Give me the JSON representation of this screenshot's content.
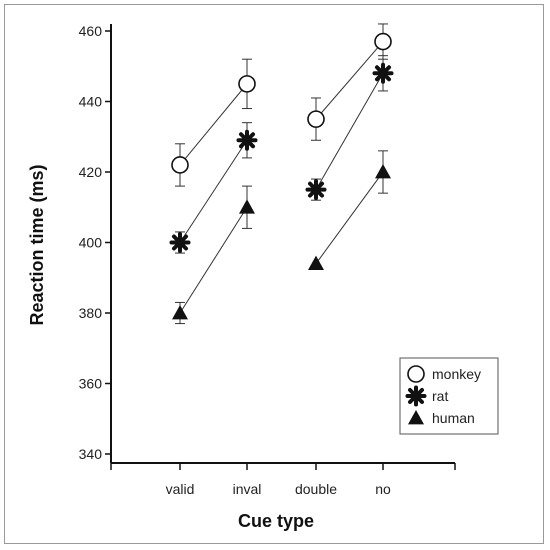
{
  "chart_data": {
    "type": "scatter",
    "xlabel": "Cue type",
    "ylabel": "Reaction time (ms)",
    "categories": [
      "valid",
      "inval",
      "double",
      "no"
    ],
    "ylim": [
      340,
      460
    ],
    "yticks": [
      340,
      360,
      380,
      400,
      420,
      440,
      460
    ],
    "grid": false,
    "legend_position": "bottom-right",
    "connected_pairs": [
      [
        0,
        1
      ],
      [
        2,
        3
      ]
    ],
    "series": [
      {
        "name": "monkey",
        "marker": "open-circle",
        "values": [
          422,
          445,
          435,
          457
        ],
        "error": [
          6,
          7,
          6,
          5
        ]
      },
      {
        "name": "rat",
        "marker": "asterisk",
        "values": [
          400,
          429,
          415,
          448
        ],
        "error": [
          3,
          5,
          3,
          5
        ]
      },
      {
        "name": "human",
        "marker": "filled-triangle",
        "values": [
          380,
          410,
          394,
          420
        ],
        "error": [
          3,
          6,
          0,
          6
        ]
      }
    ]
  }
}
